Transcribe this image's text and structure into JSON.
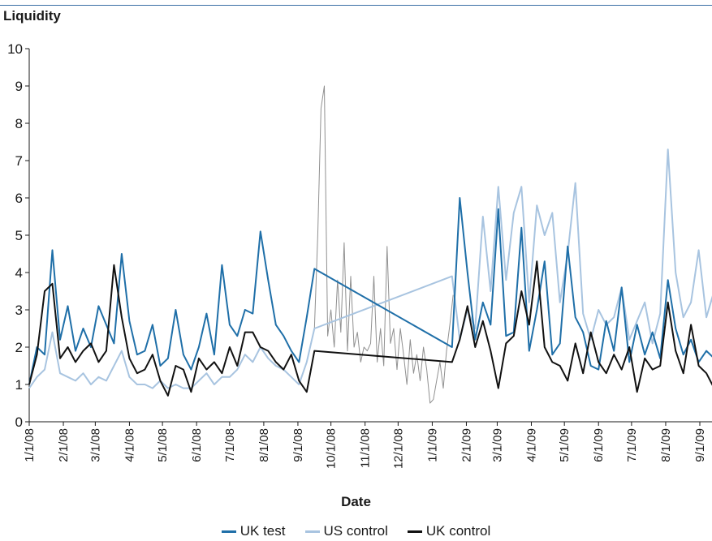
{
  "chart_data": {
    "type": "line",
    "title": "",
    "ylabel": "Liquidity",
    "xlabel": "Date",
    "ylim": [
      0,
      10
    ],
    "yticks": [
      "0",
      "1",
      "2",
      "3",
      "4",
      "5",
      "6",
      "7",
      "8",
      "9",
      "10"
    ],
    "x_ticks": [
      "1/1/08",
      "2/1/08",
      "3/1/08",
      "4/1/08",
      "5/1/08",
      "6/1/08",
      "7/1/08",
      "8/1/08",
      "9/1/08",
      "10/1/08",
      "11/1/08",
      "12/1/08",
      "1/1/09",
      "2/1/09",
      "3/1/09",
      "4/1/09",
      "5/1/09",
      "6/1/09",
      "7/1/09",
      "8/1/09",
      "9/1/09"
    ],
    "x_dates": [
      "2008-01-01",
      "2008-02-01",
      "2008-03-01",
      "2008-04-01",
      "2008-05-01",
      "2008-06-01",
      "2008-07-01",
      "2008-08-01",
      "2008-09-01",
      "2008-10-01",
      "2008-11-01",
      "2008-12-01",
      "2009-01-01",
      "2009-02-01",
      "2009-03-01",
      "2009-04-01",
      "2009-05-01",
      "2009-06-01",
      "2009-07-01",
      "2009-08-01",
      "2009-09-01"
    ],
    "grid": false,
    "legend_position": "bottom",
    "series": [
      {
        "name": "UK test",
        "color": "#1f6fa8",
        "x": [
          "2008-01-01",
          "2008-01-08",
          "2008-01-15",
          "2008-01-22",
          "2008-01-29",
          "2008-02-05",
          "2008-02-12",
          "2008-02-19",
          "2008-02-26",
          "2008-03-04",
          "2008-03-11",
          "2008-03-18",
          "2008-03-25",
          "2008-04-01",
          "2008-04-08",
          "2008-04-15",
          "2008-04-22",
          "2008-04-29",
          "2008-05-06",
          "2008-05-13",
          "2008-05-20",
          "2008-05-27",
          "2008-06-03",
          "2008-06-10",
          "2008-06-17",
          "2008-06-24",
          "2008-07-01",
          "2008-07-08",
          "2008-07-15",
          "2008-07-22",
          "2008-07-29",
          "2008-08-05",
          "2008-08-12",
          "2008-08-19",
          "2008-08-26",
          "2008-09-02",
          "2008-09-09",
          "2008-09-16",
          "2009-01-19",
          "2009-01-26",
          "2009-02-02",
          "2009-02-09",
          "2009-02-16",
          "2009-02-23",
          "2009-03-02",
          "2009-03-09",
          "2009-03-16",
          "2009-03-23",
          "2009-03-30",
          "2009-04-06",
          "2009-04-13",
          "2009-04-20",
          "2009-04-27",
          "2009-05-04",
          "2009-05-11",
          "2009-05-18",
          "2009-05-25",
          "2009-06-01",
          "2009-06-08",
          "2009-06-15",
          "2009-06-22",
          "2009-06-29",
          "2009-07-06",
          "2009-07-13",
          "2009-07-20",
          "2009-07-27",
          "2009-08-03",
          "2009-08-10",
          "2009-08-17",
          "2009-08-24",
          "2009-08-31",
          "2009-09-07",
          "2009-09-14"
        ],
        "values": [
          1.0,
          2.0,
          1.8,
          4.6,
          2.2,
          3.1,
          1.9,
          2.5,
          2.0,
          3.1,
          2.6,
          2.1,
          4.5,
          2.7,
          1.8,
          1.9,
          2.6,
          1.5,
          1.7,
          3.0,
          1.8,
          1.4,
          2.0,
          2.9,
          1.8,
          4.2,
          2.6,
          2.3,
          3.0,
          2.9,
          5.1,
          3.8,
          2.6,
          2.3,
          1.9,
          1.6,
          2.8,
          4.1,
          2.0,
          6.0,
          4.0,
          2.2,
          3.2,
          2.6,
          5.7,
          2.3,
          2.4,
          5.2,
          1.9,
          3.0,
          4.3,
          1.8,
          2.1,
          4.7,
          2.8,
          2.4,
          1.5,
          1.4,
          2.7,
          1.9,
          3.6,
          1.6,
          2.6,
          1.8,
          2.4,
          1.7,
          3.8,
          2.5,
          1.8,
          2.2,
          1.6,
          1.9,
          1.7
        ]
      },
      {
        "name": "US control",
        "color": "#a8c4e0",
        "x": [
          "2008-01-01",
          "2008-01-08",
          "2008-01-15",
          "2008-01-22",
          "2008-01-29",
          "2008-02-05",
          "2008-02-12",
          "2008-02-19",
          "2008-02-26",
          "2008-03-04",
          "2008-03-11",
          "2008-03-18",
          "2008-03-25",
          "2008-04-01",
          "2008-04-08",
          "2008-04-15",
          "2008-04-22",
          "2008-04-29",
          "2008-05-06",
          "2008-05-13",
          "2008-05-20",
          "2008-05-27",
          "2008-06-03",
          "2008-06-10",
          "2008-06-17",
          "2008-06-24",
          "2008-07-01",
          "2008-07-08",
          "2008-07-15",
          "2008-07-22",
          "2008-07-29",
          "2008-08-05",
          "2008-08-12",
          "2008-08-19",
          "2008-08-26",
          "2008-09-02",
          "2008-09-09",
          "2008-09-16",
          "2009-01-19",
          "2009-01-26",
          "2009-02-02",
          "2009-02-09",
          "2009-02-16",
          "2009-02-23",
          "2009-03-02",
          "2009-03-09",
          "2009-03-16",
          "2009-03-23",
          "2009-03-30",
          "2009-04-06",
          "2009-04-13",
          "2009-04-20",
          "2009-04-27",
          "2009-05-04",
          "2009-05-11",
          "2009-05-18",
          "2009-05-25",
          "2009-06-01",
          "2009-06-08",
          "2009-06-15",
          "2009-06-22",
          "2009-06-29",
          "2009-07-06",
          "2009-07-13",
          "2009-07-20",
          "2009-07-27",
          "2009-08-03",
          "2009-08-10",
          "2009-08-17",
          "2009-08-24",
          "2009-08-31",
          "2009-09-07",
          "2009-09-14"
        ],
        "values": [
          0.9,
          1.2,
          1.4,
          2.4,
          1.3,
          1.2,
          1.1,
          1.3,
          1.0,
          1.2,
          1.1,
          1.5,
          1.9,
          1.2,
          1.0,
          1.0,
          0.9,
          1.1,
          0.9,
          1.0,
          0.9,
          0.9,
          1.1,
          1.3,
          1.0,
          1.2,
          1.2,
          1.4,
          1.8,
          1.6,
          2.0,
          1.7,
          1.5,
          1.4,
          1.2,
          1.0,
          1.6,
          2.5,
          3.9,
          2.2,
          3.0,
          2.5,
          5.5,
          3.5,
          6.3,
          3.8,
          5.6,
          6.3,
          3.2,
          5.8,
          5.0,
          5.6,
          3.2,
          4.5,
          6.4,
          2.9,
          2.2,
          3.0,
          2.6,
          2.8,
          3.6,
          2.2,
          2.7,
          3.2,
          2.1,
          2.9,
          7.3,
          4.0,
          2.8,
          3.2,
          4.6,
          2.8,
          3.5
        ]
      },
      {
        "name": "UK control",
        "color": "#111111",
        "x": [
          "2008-01-01",
          "2008-01-08",
          "2008-01-15",
          "2008-01-22",
          "2008-01-29",
          "2008-02-05",
          "2008-02-12",
          "2008-02-19",
          "2008-02-26",
          "2008-03-04",
          "2008-03-11",
          "2008-03-18",
          "2008-03-25",
          "2008-04-01",
          "2008-04-08",
          "2008-04-15",
          "2008-04-22",
          "2008-04-29",
          "2008-05-06",
          "2008-05-13",
          "2008-05-20",
          "2008-05-27",
          "2008-06-03",
          "2008-06-10",
          "2008-06-17",
          "2008-06-24",
          "2008-07-01",
          "2008-07-08",
          "2008-07-15",
          "2008-07-22",
          "2008-07-29",
          "2008-08-05",
          "2008-08-12",
          "2008-08-19",
          "2008-08-26",
          "2008-09-02",
          "2008-09-09",
          "2008-09-16",
          "2009-01-19",
          "2009-01-26",
          "2009-02-02",
          "2009-02-09",
          "2009-02-16",
          "2009-02-23",
          "2009-03-02",
          "2009-03-09",
          "2009-03-16",
          "2009-03-23",
          "2009-03-30",
          "2009-04-06",
          "2009-04-13",
          "2009-04-20",
          "2009-04-27",
          "2009-05-04",
          "2009-05-11",
          "2009-05-18",
          "2009-05-25",
          "2009-06-01",
          "2009-06-08",
          "2009-06-15",
          "2009-06-22",
          "2009-06-29",
          "2009-07-06",
          "2009-07-13",
          "2009-07-20",
          "2009-07-27",
          "2009-08-03",
          "2009-08-10",
          "2009-08-17",
          "2009-08-24",
          "2009-08-31",
          "2009-09-07",
          "2009-09-14"
        ],
        "values": [
          1.0,
          1.8,
          3.5,
          3.7,
          1.7,
          2.0,
          1.6,
          1.9,
          2.1,
          1.6,
          1.9,
          4.2,
          2.8,
          1.7,
          1.3,
          1.4,
          1.8,
          1.1,
          0.7,
          1.5,
          1.4,
          0.8,
          1.7,
          1.4,
          1.6,
          1.3,
          2.0,
          1.5,
          2.4,
          2.4,
          2.0,
          1.9,
          1.6,
          1.4,
          1.8,
          1.1,
          0.8,
          1.9,
          1.6,
          2.2,
          3.1,
          2.0,
          2.7,
          1.9,
          0.9,
          2.1,
          2.3,
          3.5,
          2.6,
          4.3,
          2.0,
          1.6,
          1.5,
          1.1,
          2.1,
          1.3,
          2.4,
          1.6,
          1.3,
          1.8,
          1.4,
          2.0,
          0.8,
          1.7,
          1.4,
          1.5,
          3.2,
          1.9,
          1.3,
          2.6,
          1.5,
          1.3,
          0.9
        ]
      },
      {
        "name": "",
        "color": "#909090",
        "x": [
          "2008-09-16",
          "2008-09-19",
          "2008-09-22",
          "2008-09-25",
          "2008-09-28",
          "2008-10-01",
          "2008-10-04",
          "2008-10-07",
          "2008-10-10",
          "2008-10-13",
          "2008-10-16",
          "2008-10-19",
          "2008-10-22",
          "2008-10-25",
          "2008-10-28",
          "2008-10-31",
          "2008-11-03",
          "2008-11-06",
          "2008-11-09",
          "2008-11-12",
          "2008-11-15",
          "2008-11-18",
          "2008-11-21",
          "2008-11-24",
          "2008-11-27",
          "2008-11-30",
          "2008-12-03",
          "2008-12-06",
          "2008-12-09",
          "2008-12-12",
          "2008-12-15",
          "2008-12-18",
          "2008-12-21",
          "2008-12-24",
          "2008-12-27",
          "2008-12-30",
          "2009-01-02",
          "2009-01-05",
          "2009-01-08",
          "2009-01-11",
          "2009-01-14",
          "2009-01-17",
          "2009-01-20"
        ],
        "values": [
          2.5,
          5.0,
          8.4,
          9.0,
          2.3,
          3.0,
          2.0,
          3.8,
          2.4,
          4.8,
          1.9,
          3.9,
          2.0,
          2.4,
          1.6,
          2.0,
          1.9,
          2.1,
          3.9,
          1.6,
          2.5,
          1.5,
          4.7,
          2.1,
          2.5,
          1.4,
          2.5,
          1.8,
          1.0,
          2.2,
          1.3,
          1.8,
          1.1,
          2.0,
          1.4,
          0.5,
          0.6,
          1.1,
          1.6,
          0.9,
          1.9,
          2.6,
          3.4
        ]
      }
    ]
  }
}
